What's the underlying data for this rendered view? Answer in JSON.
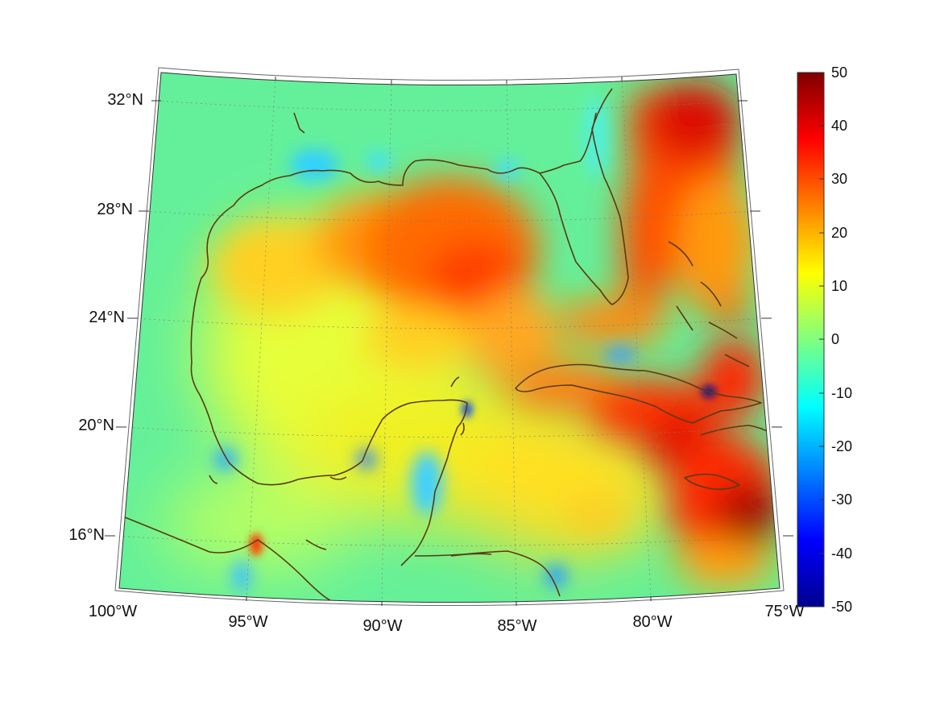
{
  "map": {
    "projection": "lambert-conic",
    "region": "Gulf of Mexico and Caribbean",
    "lon_range": [
      -100,
      -75
    ],
    "lat_range": [
      14,
      33
    ],
    "gridlines": true,
    "coastlines": true,
    "coastline_color": "#5a3a10",
    "longitude_labels": [
      "100°W",
      "95°W",
      "90°W",
      "85°W",
      "80°W",
      "75°W"
    ],
    "latitude_labels": [
      "16°N",
      "20°N",
      "24°N",
      "28°N",
      "32°N"
    ]
  },
  "colorbar": {
    "colormap": "jet",
    "min": -50,
    "max": 50,
    "tick_labels": [
      "50",
      "40",
      "30",
      "20",
      "10",
      "0",
      "-10",
      "-20",
      "-30",
      "-40",
      "-50"
    ]
  }
}
